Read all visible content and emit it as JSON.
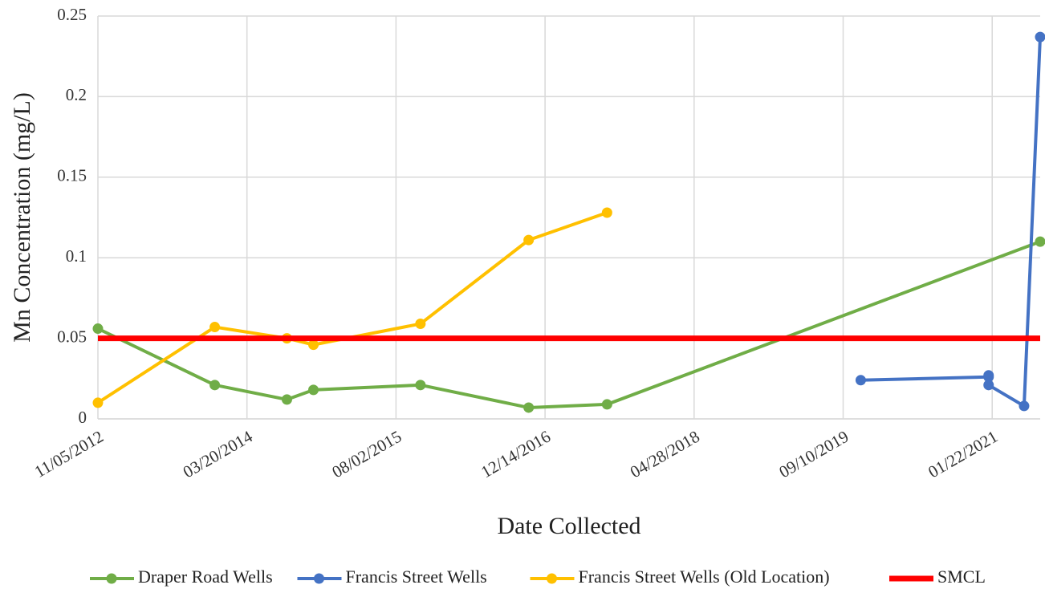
{
  "chart_data": {
    "type": "line",
    "x_label": "Date Collected",
    "y_label": "Mn Concentration (mg/L)",
    "xlim": [
      "2012-11-05",
      "2021-07-02"
    ],
    "xticks": [
      {
        "value": "2012-11-05",
        "label": "11/05/2012"
      },
      {
        "value": "2014-03-20",
        "label": "03/20/2014"
      },
      {
        "value": "2015-08-02",
        "label": "08/02/2015"
      },
      {
        "value": "2016-12-14",
        "label": "12/14/2016"
      },
      {
        "value": "2018-04-28",
        "label": "04/28/2018"
      },
      {
        "value": "2019-09-10",
        "label": "09/10/2019"
      },
      {
        "value": "2021-01-22",
        "label": "01/22/2021"
      }
    ],
    "ylim": [
      0,
      0.25
    ],
    "yticks": [
      0,
      0.05,
      0.1,
      0.15,
      0.2,
      0.25
    ],
    "grid": true,
    "legend": "bottom",
    "series": [
      {
        "name": "Draper Road Wells",
        "color": "#70ad47",
        "markers": true,
        "x": [
          "2012-11-05",
          "2013-12-02",
          "2014-08-01",
          "2014-10-29",
          "2015-10-23",
          "2016-10-20",
          "2017-07-10",
          "2021-07-02"
        ],
        "values": [
          0.056,
          0.021,
          0.012,
          0.018,
          0.021,
          0.007,
          0.009,
          0.11
        ]
      },
      {
        "name": "Francis Street Wells",
        "color": "#4472c4",
        "markers": true,
        "x": [
          "2019-11-08",
          "2021-01-10",
          "2021-01-10",
          "2021-01-10",
          "2021-05-09",
          "2021-07-02"
        ],
        "values": [
          0.024,
          0.026,
          0.027,
          0.021,
          0.008,
          0.237
        ]
      },
      {
        "name": "Francis Street Wells (Old Location)",
        "color": "#ffc000",
        "markers": true,
        "x": [
          "2012-11-05",
          "2013-12-02",
          "2014-08-01",
          "2014-10-29",
          "2015-10-23",
          "2016-10-20",
          "2017-07-10"
        ],
        "values": [
          0.01,
          0.057,
          0.05,
          0.046,
          0.059,
          0.111,
          0.128
        ]
      },
      {
        "name": "SMCL",
        "color": "#ff0000",
        "markers": false,
        "x": [
          "2012-11-05",
          "2021-07-02"
        ],
        "values": [
          0.05,
          0.05
        ]
      }
    ]
  }
}
